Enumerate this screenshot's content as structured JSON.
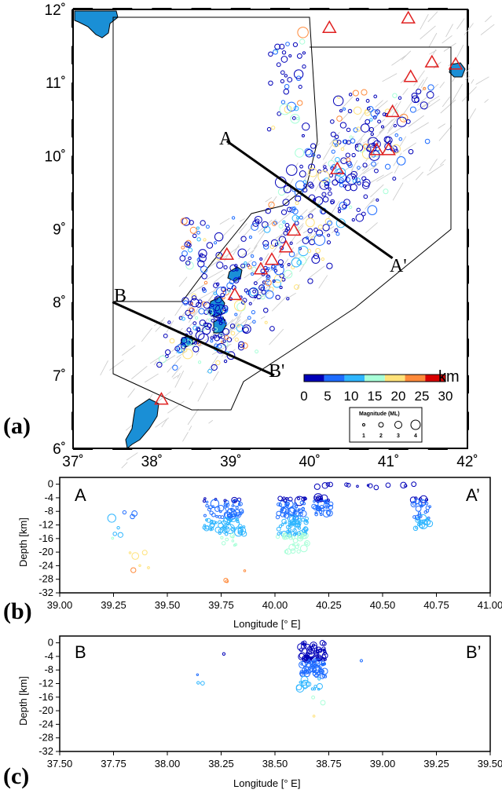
{
  "panels": {
    "a": "(a)",
    "b": "(b)",
    "c": "(c)"
  },
  "map": {
    "lon_ticks": [
      "37˚",
      "38˚",
      "39˚",
      "40˚",
      "41˚",
      "42˚"
    ],
    "lat_ticks": [
      "6˚",
      "7˚",
      "8˚",
      "9˚",
      "10˚",
      "11˚",
      "12˚"
    ],
    "lon_range": [
      37,
      42
    ],
    "lat_range": [
      6,
      12
    ],
    "profile_labels": {
      "A": "A",
      "A_prime": "A'",
      "B": "B",
      "B_prime": "B'"
    },
    "profiles": [
      {
        "name": "A",
        "start": [
          38.95,
          10.2
        ],
        "end": [
          41.05,
          8.6
        ]
      },
      {
        "name": "B",
        "start": [
          37.5,
          8.0
        ],
        "end": [
          39.55,
          7.0
        ]
      }
    ],
    "colors": {
      "ocean": "#1a8fd6",
      "fault": "#c8c8c8",
      "triangle": "#e02020"
    },
    "depth_scale": {
      "unit": "km",
      "ticks": [
        "0",
        "5",
        "10",
        "15",
        "20",
        "25",
        "30"
      ],
      "colors": [
        "#0000b8",
        "#1e6cff",
        "#2fb6ff",
        "#a8ffd8",
        "#ffe27a",
        "#ff8a3a",
        "#d80000"
      ]
    },
    "magnitude_legend": {
      "title": "Magnitude (ML)",
      "labels": [
        "1",
        "2",
        "3",
        "4"
      ]
    }
  },
  "profile_ab": {
    "left_label": "A",
    "right_label": "A’",
    "ylabel": "Depth [km]",
    "xlabel": "Longitude [° E]",
    "x_ticks": [
      "39.00",
      "39.25",
      "39.50",
      "39.75",
      "40.00",
      "40.25",
      "40.50",
      "40.75",
      "41.00"
    ],
    "y_ticks": [
      "0",
      "-4",
      "-8",
      "-12",
      "-16",
      "-20",
      "-24",
      "-28",
      "-32"
    ],
    "xlim": [
      39.0,
      41.0
    ],
    "ylim": [
      -32,
      2
    ]
  },
  "profile_bb": {
    "left_label": "B",
    "right_label": "B’",
    "ylabel": "Depth [km]",
    "xlabel": "Longitude [° E]",
    "x_ticks": [
      "37.50",
      "37.75",
      "38.00",
      "38.25",
      "38.50",
      "38.75",
      "39.00",
      "39.25",
      "39.50"
    ],
    "y_ticks": [
      "0",
      "-4",
      "-8",
      "-12",
      "-16",
      "-20",
      "-24",
      "-28",
      "-32"
    ],
    "xlim": [
      37.5,
      39.5
    ],
    "ylim": [
      -32,
      2
    ]
  }
}
